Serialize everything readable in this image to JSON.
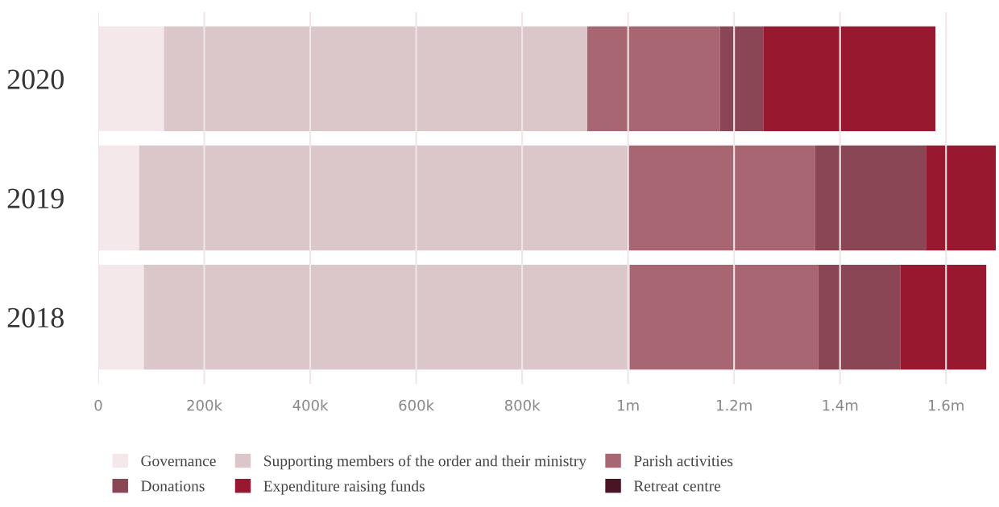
{
  "chart_data": {
    "type": "bar",
    "orientation": "horizontal",
    "stacked": true,
    "categories": [
      "2020",
      "2019",
      "2018"
    ],
    "series": [
      {
        "name": "Governance",
        "color": "#f5e8ea",
        "values": [
          124000,
          77000,
          86000
        ]
      },
      {
        "name": "Supporting members of the order and their ministry",
        "color": "#dbc7ca",
        "values": [
          799000,
          923000,
          917000
        ]
      },
      {
        "name": "Parish activities",
        "color": "#a86672",
        "values": [
          250000,
          353000,
          356000
        ]
      },
      {
        "name": "Donations",
        "color": "#8b4656",
        "values": [
          82000,
          209000,
          155000
        ]
      },
      {
        "name": "Expenditure raising funds",
        "color": "#97182f",
        "values": [
          325000,
          132000,
          162000
        ]
      },
      {
        "name": "Retreat centre",
        "color": "#4b1424",
        "values": [
          0,
          0,
          0
        ]
      }
    ],
    "xlim": [
      0,
      1700000
    ],
    "xticks": [
      0,
      {
        "value": 200000,
        "label": "200k"
      },
      {
        "value": 400000,
        "label": "400k"
      },
      {
        "value": 600000,
        "label": "600k"
      },
      {
        "value": 800000,
        "label": "800k"
      },
      {
        "value": 1000000,
        "label": "1m"
      },
      {
        "value": 1200000,
        "label": "1.2m"
      },
      {
        "value": 1400000,
        "label": "1.4m"
      },
      {
        "value": 1600000,
        "label": "1.6m"
      }
    ],
    "grid": "x",
    "legend": "bottom"
  }
}
